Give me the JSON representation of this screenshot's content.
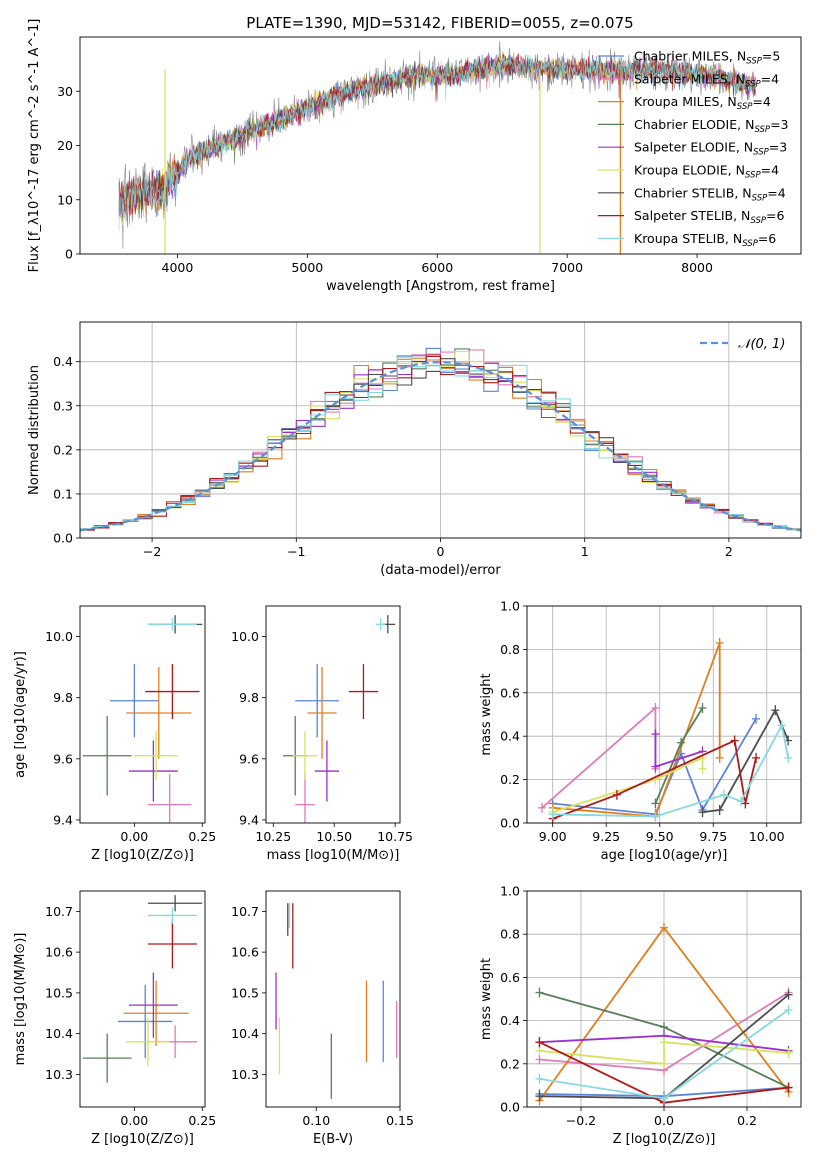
{
  "title": "PLATE=1390, MJD=53142, FIBERID=0055, z=0.075",
  "models": [
    {
      "name": "Chabrier MILES",
      "nssp": "5",
      "color": "#5b84d6"
    },
    {
      "name": "Salpeter MILES",
      "nssp": "4",
      "color": "#e07ab8"
    },
    {
      "name": "Kroupa MILES",
      "nssp": "4",
      "color": "#e07f20"
    },
    {
      "name": "Chabrier ELODIE",
      "nssp": "3",
      "color": "#567f5a"
    },
    {
      "name": "Salpeter ELODIE",
      "nssp": "3",
      "color": "#9b30cc"
    },
    {
      "name": "Kroupa ELODIE",
      "nssp": "4",
      "color": "#d6e35a"
    },
    {
      "name": "Chabrier STELIB",
      "nssp": "4",
      "color": "#4d4d4d"
    },
    {
      "name": "Salpeter STELIB",
      "nssp": "6",
      "color": "#b01818"
    },
    {
      "name": "Kroupa STELIB",
      "nssp": "6",
      "color": "#86d9e0"
    }
  ],
  "chart_data": [
    {
      "id": "spectrum",
      "type": "line",
      "xlabel": "wavelength [Angstrom, rest frame]",
      "ylabel": "Flux [f_λ10^-17 erg cm^-2 s^-1 A^-1]",
      "xlim": [
        3250,
        8800
      ],
      "ylim": [
        0,
        40
      ],
      "xticks": [
        4000,
        5000,
        6000,
        7000,
        8000
      ],
      "yticks": [
        0,
        10,
        20,
        30
      ],
      "legend": "top-right",
      "continuum": {
        "x": [
          3550,
          3700,
          3900,
          4100,
          4300,
          4600,
          4900,
          5200,
          5500,
          5800,
          6100,
          6500,
          6900,
          7300,
          7700,
          8100,
          8450
        ],
        "y": [
          9,
          11,
          12,
          18,
          20,
          23,
          26,
          29,
          31,
          33,
          33,
          35,
          34,
          34,
          34,
          33,
          31
        ]
      },
      "spikes": [
        {
          "x": 3905,
          "color": "#d6e35a"
        },
        {
          "x": 6790,
          "color": "#d6e35a"
        },
        {
          "x": 7410,
          "color": "#e07f20"
        }
      ]
    },
    {
      "id": "residuals",
      "type": "histogram",
      "xlabel": "(data-model)/error",
      "ylabel": "Normed distribution",
      "xlim": [
        -2.5,
        2.5
      ],
      "ylim": [
        0,
        0.49
      ],
      "xticks": [
        -2,
        -1,
        0,
        1,
        2
      ],
      "xtick_labels": [
        "−2",
        "−1",
        "0",
        "1",
        "2"
      ],
      "yticks": [
        0,
        0.1,
        0.2,
        0.3,
        0.4
      ],
      "ytick_labels": [
        "0.0",
        "0.1",
        "0.2",
        "0.3",
        "0.4"
      ],
      "bin_width": 0.1,
      "reference_label": "𝒩(0, 1)",
      "reference_color": "#5b8fd6",
      "grid": true
    },
    {
      "id": "age-vs-Z",
      "type": "errorbar",
      "xlabel": "Z [log10(Z/Z⊙)]",
      "ylabel": "age [log10(age/yr)]",
      "xlim": [
        -0.2,
        0.26
      ],
      "ylim": [
        9.39,
        10.1
      ],
      "xticks": [
        0.0,
        0.25
      ],
      "xtick_labels": [
        "0.00",
        "0.25"
      ],
      "yticks": [
        9.4,
        9.6,
        9.8,
        10.0
      ],
      "ytick_labels": [
        "9.4",
        "9.6",
        "9.8",
        "10.0"
      ],
      "points": [
        {
          "m": 0,
          "x": 0.0,
          "xerr": 0.09,
          "y": 9.79,
          "yerr": 0.12
        },
        {
          "m": 1,
          "x": 0.13,
          "xerr": 0.08,
          "y": 9.45,
          "yerr": 0.1
        },
        {
          "m": 2,
          "x": 0.09,
          "xerr": 0.12,
          "y": 9.75,
          "yerr": 0.15
        },
        {
          "m": 3,
          "x": -0.1,
          "xerr": 0.09,
          "y": 9.61,
          "yerr": 0.13
        },
        {
          "m": 4,
          "x": 0.07,
          "xerr": 0.09,
          "y": 9.56,
          "yerr": 0.1
        },
        {
          "m": 5,
          "x": 0.08,
          "xerr": 0.08,
          "y": 9.61,
          "yerr": 0.08
        },
        {
          "m": 6,
          "x": 0.15,
          "xerr": 0.1,
          "y": 10.04,
          "yerr": 0.03
        },
        {
          "m": 7,
          "x": 0.14,
          "xerr": 0.1,
          "y": 9.82,
          "yerr": 0.09
        },
        {
          "m": 8,
          "x": 0.14,
          "xerr": 0.09,
          "y": 10.04,
          "yerr": 0.02
        }
      ]
    },
    {
      "id": "age-vs-mass",
      "type": "errorbar",
      "xlabel": "mass [log10(M/M⊙)]",
      "ylabel": "",
      "xlim": [
        10.22,
        10.77
      ],
      "ylim": [
        9.39,
        10.1
      ],
      "xticks": [
        10.25,
        10.5,
        10.75
      ],
      "xtick_labels": [
        "10.25",
        "10.50",
        "10.75"
      ],
      "yticks": [
        9.4,
        9.6,
        9.8,
        10.0
      ],
      "ytick_labels": [
        "9.4",
        "9.6",
        "9.8",
        "10.0"
      ],
      "points": [
        {
          "m": 0,
          "x": 10.43,
          "xerr": 0.09,
          "y": 9.79,
          "yerr": 0.12
        },
        {
          "m": 1,
          "x": 10.38,
          "xerr": 0.04,
          "y": 9.45,
          "yerr": 0.1
        },
        {
          "m": 2,
          "x": 10.45,
          "xerr": 0.06,
          "y": 9.75,
          "yerr": 0.15
        },
        {
          "m": 3,
          "x": 10.34,
          "xerr": 0.05,
          "y": 9.61,
          "yerr": 0.13
        },
        {
          "m": 4,
          "x": 10.47,
          "xerr": 0.05,
          "y": 9.56,
          "yerr": 0.1
        },
        {
          "m": 5,
          "x": 10.38,
          "xerr": 0.05,
          "y": 9.61,
          "yerr": 0.08
        },
        {
          "m": 6,
          "x": 10.72,
          "xerr": 0.03,
          "y": 10.04,
          "yerr": 0.03
        },
        {
          "m": 7,
          "x": 10.62,
          "xerr": 0.06,
          "y": 9.82,
          "yerr": 0.09
        },
        {
          "m": 8,
          "x": 10.69,
          "xerr": 0.02,
          "y": 10.04,
          "yerr": 0.02
        }
      ]
    },
    {
      "id": "weights-vs-age",
      "type": "line",
      "xlabel": "age [log10(age/yr)]",
      "ylabel": "mass weight",
      "xlim": [
        8.88,
        10.16
      ],
      "ylim": [
        0,
        1
      ],
      "xticks": [
        9.0,
        9.25,
        9.5,
        9.75,
        10.0
      ],
      "xtick_labels": [
        "9.00",
        "9.25",
        "9.50",
        "9.75",
        "10.00"
      ],
      "yticks": [
        0,
        0.2,
        0.4,
        0.6,
        0.8,
        1.0
      ],
      "ytick_labels": [
        "0.0",
        "0.2",
        "0.4",
        "0.6",
        "0.8",
        "1.0"
      ],
      "grid": true,
      "series": [
        {
          "m": 0,
          "x": [
            9.0,
            9.48,
            9.6,
            9.7,
            9.95
          ],
          "y": [
            0.09,
            0.04,
            0.32,
            0.06,
            0.48
          ]
        },
        {
          "m": 1,
          "x": [
            8.95,
            9.48,
            9.48
          ],
          "y": [
            0.07,
            0.53,
            0.25
          ]
        },
        {
          "m": 2,
          "x": [
            9.0,
            9.48,
            9.78,
            9.78
          ],
          "y": [
            0.07,
            0.03,
            0.83,
            0.3
          ]
        },
        {
          "m": 3,
          "x": [
            9.48,
            9.6,
            9.7
          ],
          "y": [
            0.09,
            0.37,
            0.53
          ]
        },
        {
          "m": 4,
          "x": [
            9.48,
            9.48,
            9.7
          ],
          "y": [
            0.41,
            0.26,
            0.33
          ]
        },
        {
          "m": 5,
          "x": [
            9.0,
            9.48,
            9.7,
            9.7
          ],
          "y": [
            0.05,
            0.2,
            0.3,
            0.25
          ]
        },
        {
          "m": 6,
          "x": [
            9.7,
            9.78,
            10.04,
            10.1
          ],
          "y": [
            0.05,
            0.06,
            0.52,
            0.38
          ]
        },
        {
          "m": 7,
          "x": [
            9.0,
            9.3,
            9.85,
            9.9,
            9.95
          ],
          "y": [
            0.02,
            0.13,
            0.38,
            0.09,
            0.3
          ]
        },
        {
          "m": 8,
          "x": [
            9.0,
            9.48,
            9.8,
            9.88,
            10.07,
            10.1
          ],
          "y": [
            0.04,
            0.03,
            0.13,
            0.1,
            0.45,
            0.3
          ]
        }
      ]
    },
    {
      "id": "mass-vs-Z",
      "type": "errorbar",
      "xlabel": "Z [log10(Z/Z⊙)]",
      "ylabel": "mass [log10(M/M⊙)]",
      "xlim": [
        -0.2,
        0.26
      ],
      "ylim": [
        10.22,
        10.75
      ],
      "xticks": [
        0.0,
        0.25
      ],
      "xtick_labels": [
        "0.00",
        "0.25"
      ],
      "yticks": [
        10.3,
        10.4,
        10.5,
        10.6,
        10.7
      ],
      "ytick_labels": [
        "10.3",
        "10.4",
        "10.5",
        "10.6",
        "10.7"
      ],
      "points": [
        {
          "m": 0,
          "x": 0.04,
          "xerr": 0.1,
          "y": 10.43,
          "yerr": 0.09
        },
        {
          "m": 1,
          "x": 0.15,
          "xerr": 0.08,
          "y": 10.38,
          "yerr": 0.04
        },
        {
          "m": 2,
          "x": 0.08,
          "xerr": 0.12,
          "y": 10.45,
          "yerr": 0.08
        },
        {
          "m": 3,
          "x": -0.1,
          "xerr": 0.09,
          "y": 10.34,
          "yerr": 0.06
        },
        {
          "m": 4,
          "x": 0.07,
          "xerr": 0.09,
          "y": 10.47,
          "yerr": 0.08
        },
        {
          "m": 5,
          "x": 0.05,
          "xerr": 0.08,
          "y": 10.38,
          "yerr": 0.06
        },
        {
          "m": 6,
          "x": 0.15,
          "xerr": 0.1,
          "y": 10.72,
          "yerr": 0.02
        },
        {
          "m": 7,
          "x": 0.14,
          "xerr": 0.09,
          "y": 10.62,
          "yerr": 0.06
        },
        {
          "m": 8,
          "x": 0.14,
          "xerr": 0.09,
          "y": 10.69,
          "yerr": 0.02
        }
      ]
    },
    {
      "id": "mass-vs-EBV",
      "type": "errorbar",
      "xlabel": "E(B-V)",
      "ylabel": "",
      "xlim": [
        0.07,
        0.15
      ],
      "ylim": [
        10.22,
        10.75
      ],
      "xticks": [
        0.1,
        0.15
      ],
      "xtick_labels": [
        "0.10",
        "0.15"
      ],
      "yticks": [
        10.3,
        10.4,
        10.5,
        10.6,
        10.7
      ],
      "ytick_labels": [
        "10.3",
        "10.4",
        "10.5",
        "10.6",
        "10.7"
      ],
      "points": [
        {
          "m": 0,
          "x": 0.14,
          "xerr": 0,
          "y": 10.43,
          "yerr": 0.1
        },
        {
          "m": 1,
          "x": 0.148,
          "xerr": 0,
          "y": 10.41,
          "yerr": 0.07
        },
        {
          "m": 2,
          "x": 0.13,
          "xerr": 0,
          "y": 10.43,
          "yerr": 0.1
        },
        {
          "m": 3,
          "x": 0.109,
          "xerr": 0,
          "y": 10.32,
          "yerr": 0.08
        },
        {
          "m": 4,
          "x": 0.076,
          "xerr": 0,
          "y": 10.48,
          "yerr": 0.07
        },
        {
          "m": 5,
          "x": 0.078,
          "xerr": 0,
          "y": 10.37,
          "yerr": 0.07
        },
        {
          "m": 6,
          "x": 0.083,
          "xerr": 0,
          "y": 10.68,
          "yerr": 0.04
        },
        {
          "m": 7,
          "x": 0.086,
          "xerr": 0,
          "y": 10.64,
          "yerr": 0.08
        },
        {
          "m": 8,
          "x": 0.084,
          "xerr": 0,
          "y": 10.69,
          "yerr": 0.03
        }
      ]
    },
    {
      "id": "weights-vs-Z",
      "type": "line",
      "xlabel": "Z [log10(Z/Z⊙)]",
      "ylabel": "mass weight",
      "xlim": [
        -0.33,
        0.33
      ],
      "ylim": [
        0,
        1
      ],
      "xticks": [
        -0.2,
        0.0,
        0.2
      ],
      "xtick_labels": [
        "−0.2",
        "0.0",
        "0.2"
      ],
      "yticks": [
        0,
        0.2,
        0.4,
        0.6,
        0.8,
        1.0
      ],
      "ytick_labels": [
        "0.0",
        "0.2",
        "0.4",
        "0.6",
        "0.8",
        "1.0"
      ],
      "grid": true,
      "series": [
        {
          "m": 0,
          "x": [
            -0.3,
            0.0,
            0.3
          ],
          "y": [
            0.06,
            0.05,
            0.09
          ]
        },
        {
          "m": 1,
          "x": [
            -0.3,
            0.0,
            0.3
          ],
          "y": [
            0.22,
            0.17,
            0.53
          ]
        },
        {
          "m": 2,
          "x": [
            -0.3,
            0.0,
            0.3
          ],
          "y": [
            0.03,
            0.83,
            0.07
          ]
        },
        {
          "m": 3,
          "x": [
            -0.3,
            0.0,
            0.3
          ],
          "y": [
            0.53,
            0.37,
            0.09
          ]
        },
        {
          "m": 4,
          "x": [
            -0.3,
            0.0,
            0.3
          ],
          "y": [
            0.3,
            0.33,
            0.26
          ]
        },
        {
          "m": 5,
          "x": [
            -0.3,
            0.0,
            0.0,
            0.3
          ],
          "y": [
            0.26,
            0.2,
            0.3,
            0.25
          ]
        },
        {
          "m": 6,
          "x": [
            -0.3,
            0.0,
            0.3
          ],
          "y": [
            0.05,
            0.04,
            0.52
          ]
        },
        {
          "m": 7,
          "x": [
            -0.3,
            0.0,
            0.3
          ],
          "y": [
            0.3,
            0.02,
            0.09
          ]
        },
        {
          "m": 8,
          "x": [
            -0.3,
            0.0,
            0.3
          ],
          "y": [
            0.13,
            0.04,
            0.45
          ]
        }
      ]
    }
  ]
}
